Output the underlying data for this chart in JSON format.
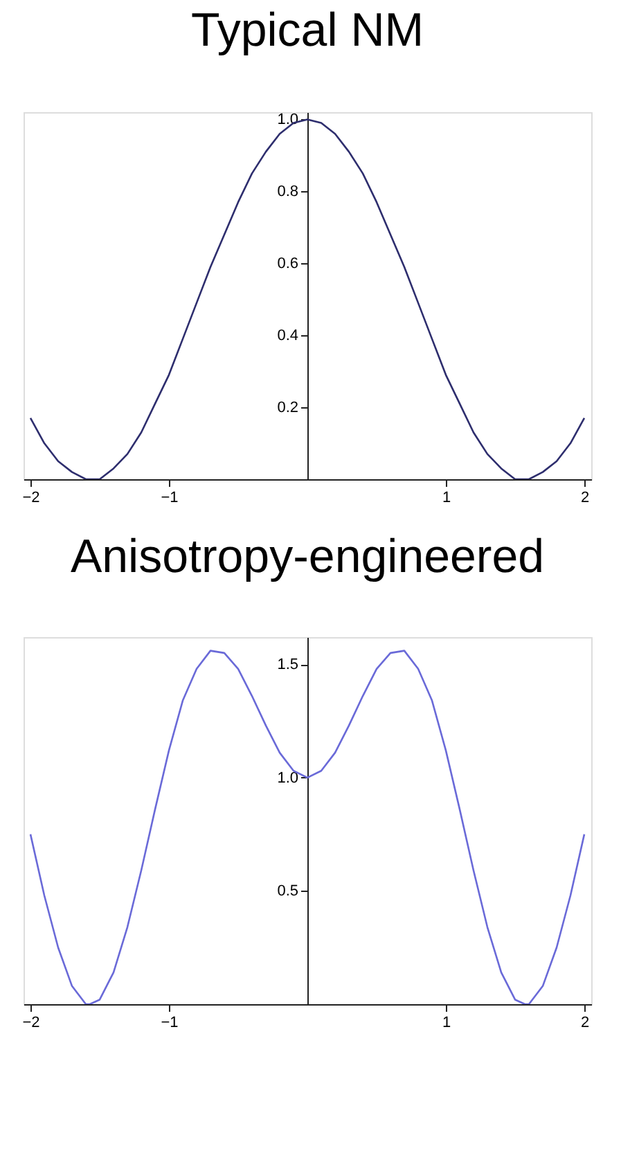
{
  "chart_data": [
    {
      "type": "line",
      "title": "Typical NM",
      "x": [
        -2.0,
        -1.9,
        -1.8,
        -1.7,
        -1.6,
        -1.571,
        -1.5,
        -1.4,
        -1.3,
        -1.2,
        -1.1,
        -1.0,
        -0.9,
        -0.8,
        -0.7,
        -0.6,
        -0.5,
        -0.4,
        -0.3,
        -0.2,
        -0.1,
        0.0,
        0.1,
        0.2,
        0.3,
        0.4,
        0.5,
        0.6,
        0.7,
        0.8,
        0.9,
        1.0,
        1.1,
        1.2,
        1.3,
        1.4,
        1.5,
        1.571,
        1.6,
        1.7,
        1.8,
        1.9,
        2.0
      ],
      "series": [
        {
          "color": "#2e2e6e",
          "values": [
            0.17,
            0.1,
            0.05,
            0.02,
            0.0,
            0.0,
            0.0,
            0.03,
            0.07,
            0.13,
            0.21,
            0.29,
            0.39,
            0.49,
            0.59,
            0.68,
            0.77,
            0.85,
            0.91,
            0.96,
            0.99,
            1.0,
            0.99,
            0.96,
            0.91,
            0.85,
            0.77,
            0.68,
            0.59,
            0.49,
            0.39,
            0.29,
            0.21,
            0.13,
            0.07,
            0.03,
            0.0,
            0.0,
            0.0,
            0.02,
            0.05,
            0.1,
            0.17
          ]
        }
      ],
      "xlim": [
        -2.05,
        2.05
      ],
      "ylim": [
        0,
        1.02
      ],
      "xticks": [
        -2,
        -1,
        1,
        2
      ],
      "yticks": [
        0.2,
        0.4,
        0.6,
        0.8,
        {
          "value": 1.0,
          "label": "1.0"
        }
      ],
      "grid": false,
      "marker": "none",
      "line_style": "solid"
    },
    {
      "type": "line",
      "title": "Anisotropy-engineered",
      "x": [
        -2.0,
        -1.9,
        -1.8,
        -1.7,
        -1.6,
        -1.571,
        -1.5,
        -1.4,
        -1.3,
        -1.2,
        -1.1,
        -1.0,
        -0.9,
        -0.8,
        -0.7,
        -0.6,
        -0.5,
        -0.4,
        -0.3,
        -0.2,
        -0.1,
        0.0,
        0.1,
        0.2,
        0.3,
        0.4,
        0.5,
        0.6,
        0.7,
        0.8,
        0.9,
        1.0,
        1.1,
        1.2,
        1.3,
        1.4,
        1.5,
        1.571,
        1.6,
        1.7,
        1.8,
        1.9,
        2.0
      ],
      "series": [
        {
          "color": "#6a6ad8",
          "values": [
            0.75,
            0.48,
            0.25,
            0.08,
            0.0,
            0.0,
            0.02,
            0.14,
            0.34,
            0.59,
            0.86,
            1.12,
            1.34,
            1.48,
            1.56,
            1.55,
            1.48,
            1.36,
            1.23,
            1.11,
            1.03,
            1.0,
            1.03,
            1.11,
            1.23,
            1.36,
            1.48,
            1.55,
            1.56,
            1.48,
            1.34,
            1.12,
            0.86,
            0.59,
            0.34,
            0.14,
            0.02,
            0.0,
            0.0,
            0.08,
            0.25,
            0.48,
            0.75
          ]
        }
      ],
      "xlim": [
        -2.05,
        2.05
      ],
      "ylim": [
        0,
        1.62
      ],
      "xticks": [
        -2,
        -1,
        1,
        2
      ],
      "yticks": [
        {
          "value": 0.5,
          "label": "0.5"
        },
        {
          "value": 1.0,
          "label": "1.0"
        },
        {
          "value": 1.5,
          "label": "1.5"
        }
      ],
      "grid": false,
      "marker": "none",
      "line_style": "solid"
    }
  ]
}
